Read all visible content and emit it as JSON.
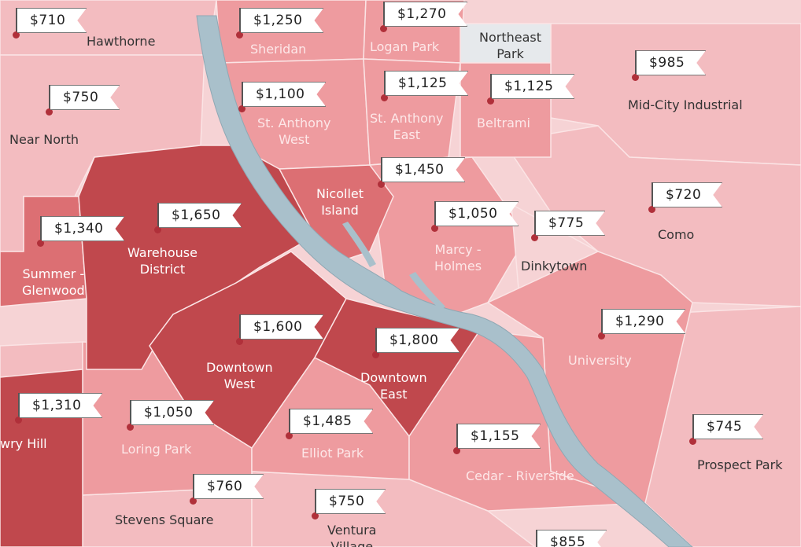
{
  "colors": {
    "background": "#f6d3d5",
    "light": "#f3bcc0",
    "medium": "#ee9b9f",
    "dark": "#dc6f73",
    "darkest": "#c0484d",
    "river": "#a9c0cb",
    "marker": "#b0303a"
  },
  "flags": [
    {
      "price": "$710"
    },
    {
      "price": "$1,250"
    },
    {
      "price": "$1,270"
    },
    {
      "price": "$985"
    },
    {
      "price": "$750"
    },
    {
      "price": "$1,100"
    },
    {
      "price": "$1,125"
    },
    {
      "price": "$1,125"
    },
    {
      "price": "$1,450"
    },
    {
      "price": "$720"
    },
    {
      "price": "$1,650"
    },
    {
      "price": "$1,340"
    },
    {
      "price": "$1,050"
    },
    {
      "price": "$775"
    },
    {
      "price": "$1,290"
    },
    {
      "price": "$1,600"
    },
    {
      "price": "$1,800"
    },
    {
      "price": "$1,310"
    },
    {
      "price": "$1,050"
    },
    {
      "price": "$1,485"
    },
    {
      "price": "$1,155"
    },
    {
      "price": "$745"
    },
    {
      "price": "$760"
    },
    {
      "price": "$750"
    },
    {
      "price": "$855"
    }
  ],
  "labels": [
    {
      "text": "Hawthorne"
    },
    {
      "text": "Sheridan"
    },
    {
      "text": "Logan Park"
    },
    {
      "text": "Northeast\nPark"
    },
    {
      "text": "Mid-City Industrial"
    },
    {
      "text": "Near North"
    },
    {
      "text": "St. Anthony\nWest"
    },
    {
      "text": "St. Anthony\nEast"
    },
    {
      "text": "Beltrami"
    },
    {
      "text": "Nicollet\nIsland"
    },
    {
      "text": "Como"
    },
    {
      "text": "Warehouse\nDistrict"
    },
    {
      "text": "Summer -\nGlenwood"
    },
    {
      "text": "Marcy -\nHolmes"
    },
    {
      "text": "Dinkytown"
    },
    {
      "text": "University"
    },
    {
      "text": "Downtown\nWest"
    },
    {
      "text": "Downtown\nEast"
    },
    {
      "text": "wry Hill"
    },
    {
      "text": "Loring Park"
    },
    {
      "text": "Elliot Park"
    },
    {
      "text": "Cedar - Riverside"
    },
    {
      "text": "Prospect Park"
    },
    {
      "text": "Stevens Square"
    },
    {
      "text": "Ventura\nVillage"
    }
  ]
}
